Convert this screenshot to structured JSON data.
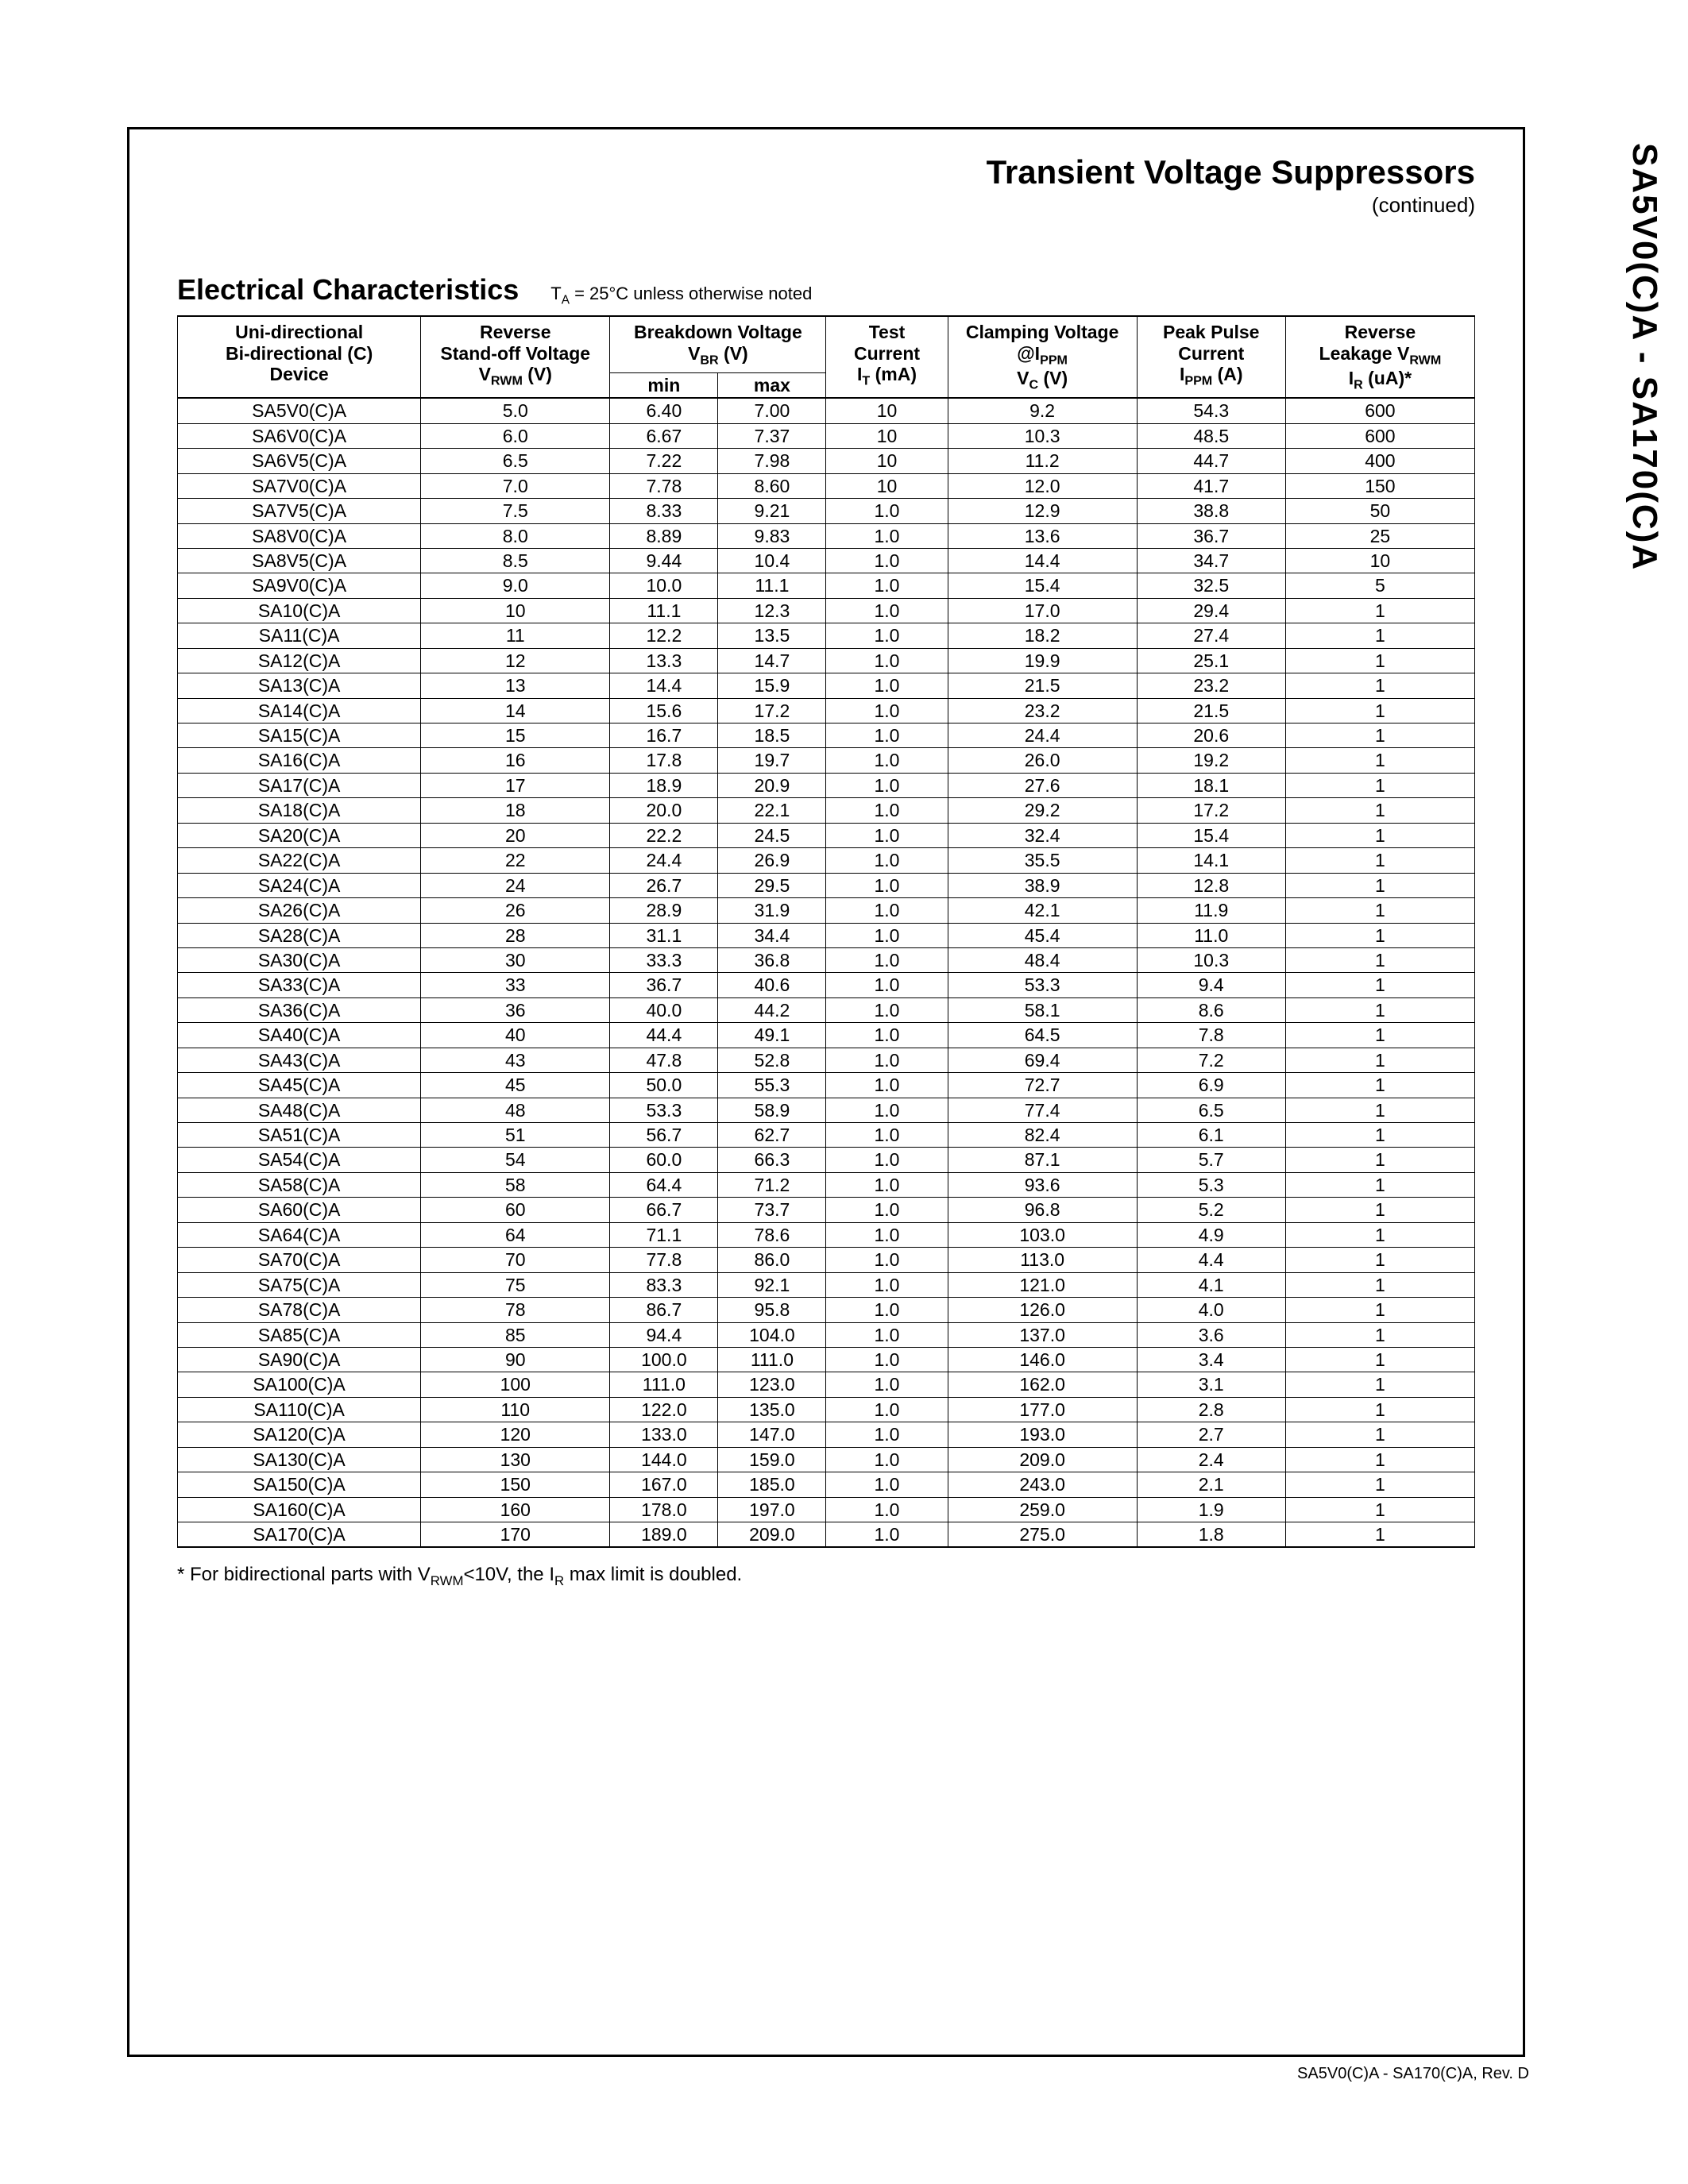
{
  "side_title": "SA5V0(C)A - SA170(C)A",
  "footer_rev": "SA5V0(C)A - SA170(C)A, Rev. D",
  "doc_title": "Transient Voltage Suppressors",
  "doc_subtitle": "(continued)",
  "section_title": "Electrical Characteristics",
  "section_note_html": "T<sub>A</sub> = 25°C unless otherwise noted",
  "footnote_html": "* For bidirectional parts with V<sub>RWM</sub><10V, the I<sub>R</sub> max limit is doubled.",
  "columns": {
    "device_html": "Uni-directional<br>Bi-directional (C)<br>Device",
    "vrwm_html": "Reverse<br>Stand-off Voltage<br>V<sub>RWM</sub> (V)",
    "vbr_html": "Breakdown Voltage<br>V<sub>BR</sub> (V)",
    "vbr_min": "min",
    "vbr_max": "max",
    "it_html": "Test<br>Current<br>I<sub>T</sub> (mA)",
    "vc_html": "Clamping Voltage<br>@I<sub>PPM</sub><br>V<sub>C</sub> (V)",
    "ippm_html": "Peak Pulse<br>Current<br>I<sub>PPM</sub> (A)",
    "ir_html": "Reverse<br>Leakage V<sub>RWM</sub><br>I<sub>R</sub> (uA)*"
  },
  "rows": [
    [
      "SA5V0(C)A",
      "5.0",
      "6.40",
      "7.00",
      "10",
      "9.2",
      "54.3",
      "600"
    ],
    [
      "SA6V0(C)A",
      "6.0",
      "6.67",
      "7.37",
      "10",
      "10.3",
      "48.5",
      "600"
    ],
    [
      "SA6V5(C)A",
      "6.5",
      "7.22",
      "7.98",
      "10",
      "11.2",
      "44.7",
      "400"
    ],
    [
      "SA7V0(C)A",
      "7.0",
      "7.78",
      "8.60",
      "10",
      "12.0",
      "41.7",
      "150"
    ],
    [
      "SA7V5(C)A",
      "7.5",
      "8.33",
      "9.21",
      "1.0",
      "12.9",
      "38.8",
      "50"
    ],
    [
      "SA8V0(C)A",
      "8.0",
      "8.89",
      "9.83",
      "1.0",
      "13.6",
      "36.7",
      "25"
    ],
    [
      "SA8V5(C)A",
      "8.5",
      "9.44",
      "10.4",
      "1.0",
      "14.4",
      "34.7",
      "10"
    ],
    [
      "SA9V0(C)A",
      "9.0",
      "10.0",
      "11.1",
      "1.0",
      "15.4",
      "32.5",
      "5"
    ],
    [
      "SA10(C)A",
      "10",
      "11.1",
      "12.3",
      "1.0",
      "17.0",
      "29.4",
      "1"
    ],
    [
      "SA11(C)A",
      "11",
      "12.2",
      "13.5",
      "1.0",
      "18.2",
      "27.4",
      "1"
    ],
    [
      "SA12(C)A",
      "12",
      "13.3",
      "14.7",
      "1.0",
      "19.9",
      "25.1",
      "1"
    ],
    [
      "SA13(C)A",
      "13",
      "14.4",
      "15.9",
      "1.0",
      "21.5",
      "23.2",
      "1"
    ],
    [
      "SA14(C)A",
      "14",
      "15.6",
      "17.2",
      "1.0",
      "23.2",
      "21.5",
      "1"
    ],
    [
      "SA15(C)A",
      "15",
      "16.7",
      "18.5",
      "1.0",
      "24.4",
      "20.6",
      "1"
    ],
    [
      "SA16(C)A",
      "16",
      "17.8",
      "19.7",
      "1.0",
      "26.0",
      "19.2",
      "1"
    ],
    [
      "SA17(C)A",
      "17",
      "18.9",
      "20.9",
      "1.0",
      "27.6",
      "18.1",
      "1"
    ],
    [
      "SA18(C)A",
      "18",
      "20.0",
      "22.1",
      "1.0",
      "29.2",
      "17.2",
      "1"
    ],
    [
      "SA20(C)A",
      "20",
      "22.2",
      "24.5",
      "1.0",
      "32.4",
      "15.4",
      "1"
    ],
    [
      "SA22(C)A",
      "22",
      "24.4",
      "26.9",
      "1.0",
      "35.5",
      "14.1",
      "1"
    ],
    [
      "SA24(C)A",
      "24",
      "26.7",
      "29.5",
      "1.0",
      "38.9",
      "12.8",
      "1"
    ],
    [
      "SA26(C)A",
      "26",
      "28.9",
      "31.9",
      "1.0",
      "42.1",
      "11.9",
      "1"
    ],
    [
      "SA28(C)A",
      "28",
      "31.1",
      "34.4",
      "1.0",
      "45.4",
      "11.0",
      "1"
    ],
    [
      "SA30(C)A",
      "30",
      "33.3",
      "36.8",
      "1.0",
      "48.4",
      "10.3",
      "1"
    ],
    [
      "SA33(C)A",
      "33",
      "36.7",
      "40.6",
      "1.0",
      "53.3",
      "9.4",
      "1"
    ],
    [
      "SA36(C)A",
      "36",
      "40.0",
      "44.2",
      "1.0",
      "58.1",
      "8.6",
      "1"
    ],
    [
      "SA40(C)A",
      "40",
      "44.4",
      "49.1",
      "1.0",
      "64.5",
      "7.8",
      "1"
    ],
    [
      "SA43(C)A",
      "43",
      "47.8",
      "52.8",
      "1.0",
      "69.4",
      "7.2",
      "1"
    ],
    [
      "SA45(C)A",
      "45",
      "50.0",
      "55.3",
      "1.0",
      "72.7",
      "6.9",
      "1"
    ],
    [
      "SA48(C)A",
      "48",
      "53.3",
      "58.9",
      "1.0",
      "77.4",
      "6.5",
      "1"
    ],
    [
      "SA51(C)A",
      "51",
      "56.7",
      "62.7",
      "1.0",
      "82.4",
      "6.1",
      "1"
    ],
    [
      "SA54(C)A",
      "54",
      "60.0",
      "66.3",
      "1.0",
      "87.1",
      "5.7",
      "1"
    ],
    [
      "SA58(C)A",
      "58",
      "64.4",
      "71.2",
      "1.0",
      "93.6",
      "5.3",
      "1"
    ],
    [
      "SA60(C)A",
      "60",
      "66.7",
      "73.7",
      "1.0",
      "96.8",
      "5.2",
      "1"
    ],
    [
      "SA64(C)A",
      "64",
      "71.1",
      "78.6",
      "1.0",
      "103.0",
      "4.9",
      "1"
    ],
    [
      "SA70(C)A",
      "70",
      "77.8",
      "86.0",
      "1.0",
      "113.0",
      "4.4",
      "1"
    ],
    [
      "SA75(C)A",
      "75",
      "83.3",
      "92.1",
      "1.0",
      "121.0",
      "4.1",
      "1"
    ],
    [
      "SA78(C)A",
      "78",
      "86.7",
      "95.8",
      "1.0",
      "126.0",
      "4.0",
      "1"
    ],
    [
      "SA85(C)A",
      "85",
      "94.4",
      "104.0",
      "1.0",
      "137.0",
      "3.6",
      "1"
    ],
    [
      "SA90(C)A",
      "90",
      "100.0",
      "111.0",
      "1.0",
      "146.0",
      "3.4",
      "1"
    ],
    [
      "SA100(C)A",
      "100",
      "111.0",
      "123.0",
      "1.0",
      "162.0",
      "3.1",
      "1"
    ],
    [
      "SA110(C)A",
      "110",
      "122.0",
      "135.0",
      "1.0",
      "177.0",
      "2.8",
      "1"
    ],
    [
      "SA120(C)A",
      "120",
      "133.0",
      "147.0",
      "1.0",
      "193.0",
      "2.7",
      "1"
    ],
    [
      "SA130(C)A",
      "130",
      "144.0",
      "159.0",
      "1.0",
      "209.0",
      "2.4",
      "1"
    ],
    [
      "SA150(C)A",
      "150",
      "167.0",
      "185.0",
      "1.0",
      "243.0",
      "2.1",
      "1"
    ],
    [
      "SA160(C)A",
      "160",
      "178.0",
      "197.0",
      "1.0",
      "259.0",
      "1.9",
      "1"
    ],
    [
      "SA170(C)A",
      "170",
      "189.0",
      "209.0",
      "1.0",
      "275.0",
      "1.8",
      "1"
    ]
  ]
}
